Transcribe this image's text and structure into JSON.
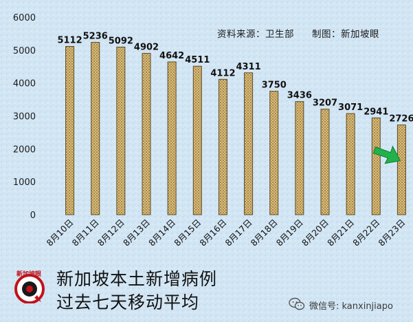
{
  "chart_data": {
    "type": "bar",
    "categories": [
      "8月10日",
      "8月11日",
      "8月12日",
      "8月13日",
      "8月14日",
      "8月15日",
      "8月16日",
      "8月17日",
      "8月18日",
      "8月19日",
      "8月20日",
      "8月21日",
      "8月22日",
      "8月23日"
    ],
    "values": [
      5112,
      5236,
      5092,
      4902,
      4642,
      4511,
      4112,
      4311,
      3750,
      3436,
      3207,
      3071,
      2941,
      2726
    ],
    "data_labels": [
      "5112",
      "5236",
      "5092",
      "4902",
      "4642",
      "4511",
      "4112",
      "4311",
      "3750",
      "3436",
      "3207",
      "3071",
      "2941",
      "2726"
    ],
    "yticks": [
      "0",
      "1000",
      "2000",
      "3000",
      "4000",
      "5000",
      "6000"
    ],
    "ylim": [
      0,
      6000
    ],
    "grid": false,
    "legend": "none",
    "bar_color": "#c8a860",
    "annotation": "down-arrow on last bar",
    "arrow_color": "#22b24c"
  },
  "source": {
    "data_source": "资料来源：卫生部",
    "made_by": "制图：新加坡眼"
  },
  "headline": {
    "line1": "新加坡本土新增病例",
    "line2": "过去七天移动平均"
  },
  "logo": {
    "text": "新加坡眼",
    "color": "#c0121a"
  },
  "wechat": {
    "label": "微信号: kanxinjiapo"
  }
}
